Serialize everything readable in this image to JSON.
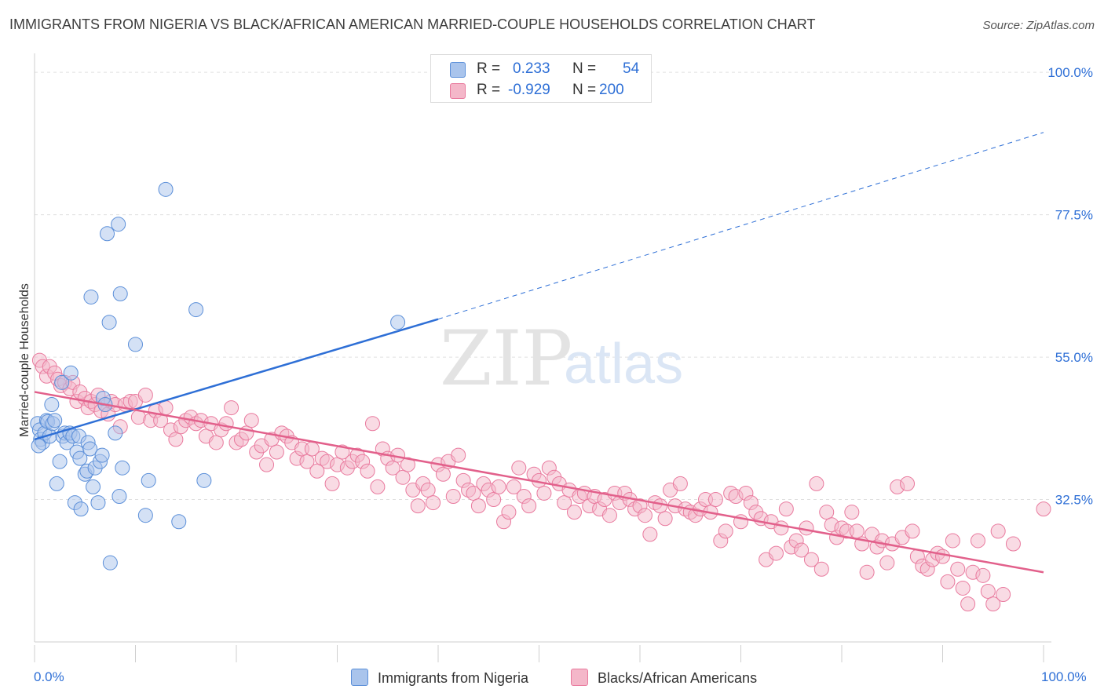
{
  "title": "IMMIGRANTS FROM NIGERIA VS BLACK/AFRICAN AMERICAN MARRIED-COUPLE HOUSEHOLDS CORRELATION CHART",
  "source": "Source: ZipAtlas.com",
  "watermark": {
    "zip": "ZIP",
    "atlas": "atlas"
  },
  "legend": {
    "rows": [
      {
        "r_label": "R =",
        "r_value": "0.233",
        "n_label": "N =",
        "n_value": "54",
        "color": "#a9c4ec"
      },
      {
        "r_label": "R =",
        "r_value": "-0.929",
        "n_label": "N =",
        "n_value": "200",
        "color": "#f4b7c9"
      }
    ]
  },
  "bottom_legend": {
    "nigeria": {
      "label": "Immigrants from Nigeria",
      "color": "#a9c4ec"
    },
    "black": {
      "label": "Blacks/African Americans",
      "color": "#f4b7c9"
    }
  },
  "colors": {
    "blue_fill": "#a9c4ec",
    "blue_stroke": "#5b8fd9",
    "blue_line": "#2e6fd6",
    "pink_fill": "#f4b7c9",
    "pink_stroke": "#e97a9e",
    "pink_line": "#e2608b",
    "grid": "#e0e0e0",
    "tick_label": "#2e6fd6"
  },
  "chart_data": {
    "type": "scatter",
    "title": "IMMIGRANTS FROM NIGERIA VS BLACK/AFRICAN AMERICAN MARRIED-COUPLE HOUSEHOLDS CORRELATION CHART",
    "xlabel": "",
    "ylabel": "Married-couple Households",
    "xlim": [
      0,
      100
    ],
    "ylim": [
      10,
      102
    ],
    "x_tick_labels": [
      "0.0%",
      "100.0%"
    ],
    "y_ticks": [
      32.5,
      55.0,
      77.5,
      100.0
    ],
    "y_tick_labels": [
      "32.5%",
      "55.0%",
      "77.5%",
      "100.0%"
    ],
    "grid": true,
    "legend_position": "top-center",
    "series": [
      {
        "name": "Immigrants from Nigeria",
        "trend": {
          "x": [
            0,
            40
          ],
          "y": [
            42.0,
            61.0
          ],
          "dashed_extension_to": [
            100,
            90.5
          ]
        },
        "points": [
          [
            0.3,
            44.5
          ],
          [
            0.5,
            43.5
          ],
          [
            0.6,
            42.0
          ],
          [
            0.8,
            41.5
          ],
          [
            1.0,
            43.0
          ],
          [
            1.2,
            45.0
          ],
          [
            1.3,
            44.8
          ],
          [
            1.5,
            42.5
          ],
          [
            1.7,
            47.5
          ],
          [
            1.8,
            44.5
          ],
          [
            2.0,
            45.0
          ],
          [
            2.2,
            35.0
          ],
          [
            2.5,
            38.5
          ],
          [
            2.7,
            51.0
          ],
          [
            2.8,
            42.5
          ],
          [
            3.0,
            43.0
          ],
          [
            3.2,
            41.5
          ],
          [
            3.5,
            43.0
          ],
          [
            3.6,
            52.5
          ],
          [
            3.8,
            42.5
          ],
          [
            4.0,
            32.0
          ],
          [
            4.2,
            40.0
          ],
          [
            4.4,
            42.5
          ],
          [
            4.5,
            39.0
          ],
          [
            4.6,
            31.0
          ],
          [
            5.0,
            36.5
          ],
          [
            5.2,
            37.0
          ],
          [
            5.3,
            41.5
          ],
          [
            5.5,
            40.5
          ],
          [
            5.6,
            64.5
          ],
          [
            5.8,
            34.5
          ],
          [
            6.0,
            37.5
          ],
          [
            6.3,
            32.0
          ],
          [
            6.5,
            38.5
          ],
          [
            6.7,
            39.5
          ],
          [
            6.8,
            48.5
          ],
          [
            7.0,
            47.5
          ],
          [
            7.2,
            74.5
          ],
          [
            7.4,
            60.5
          ],
          [
            7.5,
            22.5
          ],
          [
            8.0,
            43.0
          ],
          [
            8.3,
            76.0
          ],
          [
            8.4,
            33.0
          ],
          [
            8.5,
            65.0
          ],
          [
            8.7,
            37.5
          ],
          [
            10.0,
            57.0
          ],
          [
            11.0,
            30.0
          ],
          [
            11.3,
            35.5
          ],
          [
            13.0,
            81.5
          ],
          [
            14.3,
            29.0
          ],
          [
            16.0,
            62.5
          ],
          [
            16.8,
            35.5
          ],
          [
            36.0,
            60.5
          ],
          [
            0.4,
            41.0
          ]
        ]
      },
      {
        "name": "Blacks/African Americans",
        "trend": {
          "x": [
            0,
            100
          ],
          "y": [
            49.5,
            21.0
          ]
        },
        "points": [
          [
            0.5,
            54.5
          ],
          [
            0.8,
            53.5
          ],
          [
            1.2,
            52.0
          ],
          [
            1.5,
            53.5
          ],
          [
            2.0,
            52.5
          ],
          [
            2.3,
            51.5
          ],
          [
            2.6,
            50.5
          ],
          [
            3.0,
            51.0
          ],
          [
            3.5,
            50.0
          ],
          [
            3.8,
            51.0
          ],
          [
            4.2,
            48.0
          ],
          [
            4.5,
            49.5
          ],
          [
            5.0,
            48.5
          ],
          [
            5.3,
            47.0
          ],
          [
            5.6,
            48.0
          ],
          [
            6.0,
            47.5
          ],
          [
            6.3,
            49.0
          ],
          [
            6.6,
            46.5
          ],
          [
            7.0,
            47.5
          ],
          [
            7.3,
            46.0
          ],
          [
            7.6,
            48.0
          ],
          [
            8.0,
            47.5
          ],
          [
            8.5,
            44.0
          ],
          [
            9.0,
            47.5
          ],
          [
            9.5,
            48.0
          ],
          [
            10.0,
            48.0
          ],
          [
            10.3,
            45.5
          ],
          [
            11.0,
            49.0
          ],
          [
            11.5,
            45.0
          ],
          [
            12.0,
            46.5
          ],
          [
            12.5,
            45.0
          ],
          [
            13.0,
            47.0
          ],
          [
            13.5,
            43.5
          ],
          [
            14.0,
            42.0
          ],
          [
            14.5,
            44.0
          ],
          [
            15.0,
            45.0
          ],
          [
            15.5,
            45.5
          ],
          [
            16.0,
            44.5
          ],
          [
            16.5,
            45.0
          ],
          [
            17.0,
            42.5
          ],
          [
            17.5,
            44.5
          ],
          [
            18.0,
            41.5
          ],
          [
            18.5,
            43.5
          ],
          [
            19.0,
            44.5
          ],
          [
            19.5,
            47.0
          ],
          [
            20.0,
            41.5
          ],
          [
            20.5,
            42.0
          ],
          [
            21.0,
            43.0
          ],
          [
            21.5,
            45.0
          ],
          [
            22.0,
            40.0
          ],
          [
            22.5,
            41.0
          ],
          [
            23.0,
            38.0
          ],
          [
            23.5,
            42.0
          ],
          [
            24.0,
            40.0
          ],
          [
            24.5,
            43.0
          ],
          [
            25.0,
            42.5
          ],
          [
            25.5,
            41.5
          ],
          [
            26.0,
            39.0
          ],
          [
            26.5,
            40.5
          ],
          [
            27.0,
            38.5
          ],
          [
            27.5,
            40.5
          ],
          [
            28.0,
            37.0
          ],
          [
            28.5,
            39.0
          ],
          [
            29.0,
            38.5
          ],
          [
            29.5,
            35.0
          ],
          [
            30.0,
            38.0
          ],
          [
            30.5,
            40.0
          ],
          [
            31.0,
            37.5
          ],
          [
            31.5,
            38.5
          ],
          [
            32.0,
            39.5
          ],
          [
            32.5,
            38.5
          ],
          [
            33.0,
            37.0
          ],
          [
            33.5,
            44.5
          ],
          [
            34.0,
            34.5
          ],
          [
            34.5,
            40.5
          ],
          [
            35.0,
            39.0
          ],
          [
            35.5,
            37.5
          ],
          [
            36.0,
            39.5
          ],
          [
            36.5,
            36.0
          ],
          [
            37.0,
            38.0
          ],
          [
            37.5,
            34.0
          ],
          [
            38.0,
            31.5
          ],
          [
            38.5,
            35.0
          ],
          [
            39.0,
            34.0
          ],
          [
            39.5,
            32.0
          ],
          [
            40.0,
            38.0
          ],
          [
            40.5,
            36.5
          ],
          [
            41.0,
            38.5
          ],
          [
            41.5,
            33.0
          ],
          [
            42.0,
            39.5
          ],
          [
            42.5,
            35.5
          ],
          [
            43.0,
            34.0
          ],
          [
            43.5,
            33.5
          ],
          [
            44.0,
            31.5
          ],
          [
            44.5,
            35.0
          ],
          [
            45.0,
            34.0
          ],
          [
            45.5,
            32.5
          ],
          [
            46.0,
            34.5
          ],
          [
            46.5,
            29.0
          ],
          [
            47.0,
            30.5
          ],
          [
            47.5,
            34.5
          ],
          [
            48.0,
            37.5
          ],
          [
            48.5,
            33.0
          ],
          [
            49.0,
            31.5
          ],
          [
            49.5,
            36.5
          ],
          [
            50.0,
            35.5
          ],
          [
            50.5,
            33.5
          ],
          [
            51.0,
            37.5
          ],
          [
            51.5,
            36.0
          ],
          [
            52.0,
            35.0
          ],
          [
            52.5,
            32.0
          ],
          [
            53.0,
            34.0
          ],
          [
            53.5,
            30.5
          ],
          [
            54.0,
            33.0
          ],
          [
            54.5,
            33.5
          ],
          [
            55.0,
            31.5
          ],
          [
            55.5,
            33.0
          ],
          [
            56.0,
            31.0
          ],
          [
            56.5,
            32.5
          ],
          [
            57.0,
            30.0
          ],
          [
            57.5,
            33.5
          ],
          [
            58.0,
            32.0
          ],
          [
            58.5,
            33.5
          ],
          [
            59.0,
            32.5
          ],
          [
            59.5,
            31.0
          ],
          [
            60.0,
            31.5
          ],
          [
            60.5,
            30.0
          ],
          [
            61.0,
            27.0
          ],
          [
            61.5,
            32.0
          ],
          [
            62.0,
            31.5
          ],
          [
            62.5,
            29.5
          ],
          [
            63.0,
            34.0
          ],
          [
            63.5,
            31.5
          ],
          [
            64.0,
            35.0
          ],
          [
            64.5,
            31.0
          ],
          [
            65.0,
            30.5
          ],
          [
            65.5,
            30.0
          ],
          [
            66.0,
            31.0
          ],
          [
            66.5,
            32.5
          ],
          [
            67.0,
            30.5
          ],
          [
            67.5,
            32.5
          ],
          [
            68.0,
            26.0
          ],
          [
            68.5,
            27.5
          ],
          [
            69.0,
            33.5
          ],
          [
            69.5,
            33.0
          ],
          [
            70.0,
            29.0
          ],
          [
            70.5,
            33.5
          ],
          [
            71.0,
            32.0
          ],
          [
            71.5,
            30.5
          ],
          [
            72.0,
            29.5
          ],
          [
            72.5,
            23.0
          ],
          [
            73.0,
            29.0
          ],
          [
            73.5,
            24.0
          ],
          [
            74.0,
            28.0
          ],
          [
            74.5,
            31.0
          ],
          [
            75.0,
            25.0
          ],
          [
            75.5,
            26.0
          ],
          [
            76.0,
            24.5
          ],
          [
            76.5,
            28.0
          ],
          [
            77.0,
            23.0
          ],
          [
            77.5,
            35.0
          ],
          [
            78.0,
            21.5
          ],
          [
            78.5,
            30.5
          ],
          [
            79.0,
            28.5
          ],
          [
            79.5,
            26.5
          ],
          [
            80.0,
            28.0
          ],
          [
            80.5,
            27.5
          ],
          [
            81.0,
            30.5
          ],
          [
            81.5,
            27.5
          ],
          [
            82.0,
            25.5
          ],
          [
            82.5,
            21.0
          ],
          [
            83.0,
            27.0
          ],
          [
            83.5,
            25.0
          ],
          [
            84.0,
            26.0
          ],
          [
            84.5,
            22.5
          ],
          [
            85.0,
            25.5
          ],
          [
            85.5,
            34.5
          ],
          [
            86.0,
            26.5
          ],
          [
            86.5,
            35.0
          ],
          [
            87.0,
            27.5
          ],
          [
            87.5,
            23.5
          ],
          [
            88.0,
            22.0
          ],
          [
            88.5,
            21.5
          ],
          [
            89.0,
            23.0
          ],
          [
            89.5,
            24.0
          ],
          [
            90.0,
            23.5
          ],
          [
            90.5,
            19.5
          ],
          [
            91.0,
            26.0
          ],
          [
            91.5,
            21.5
          ],
          [
            92.0,
            18.5
          ],
          [
            92.5,
            16.0
          ],
          [
            93.0,
            21.0
          ],
          [
            93.5,
            26.0
          ],
          [
            94.0,
            20.5
          ],
          [
            94.5,
            18.0
          ],
          [
            95.0,
            16.0
          ],
          [
            95.5,
            27.5
          ],
          [
            96.0,
            17.5
          ],
          [
            97.0,
            25.5
          ],
          [
            100.0,
            31.0
          ]
        ]
      }
    ]
  }
}
